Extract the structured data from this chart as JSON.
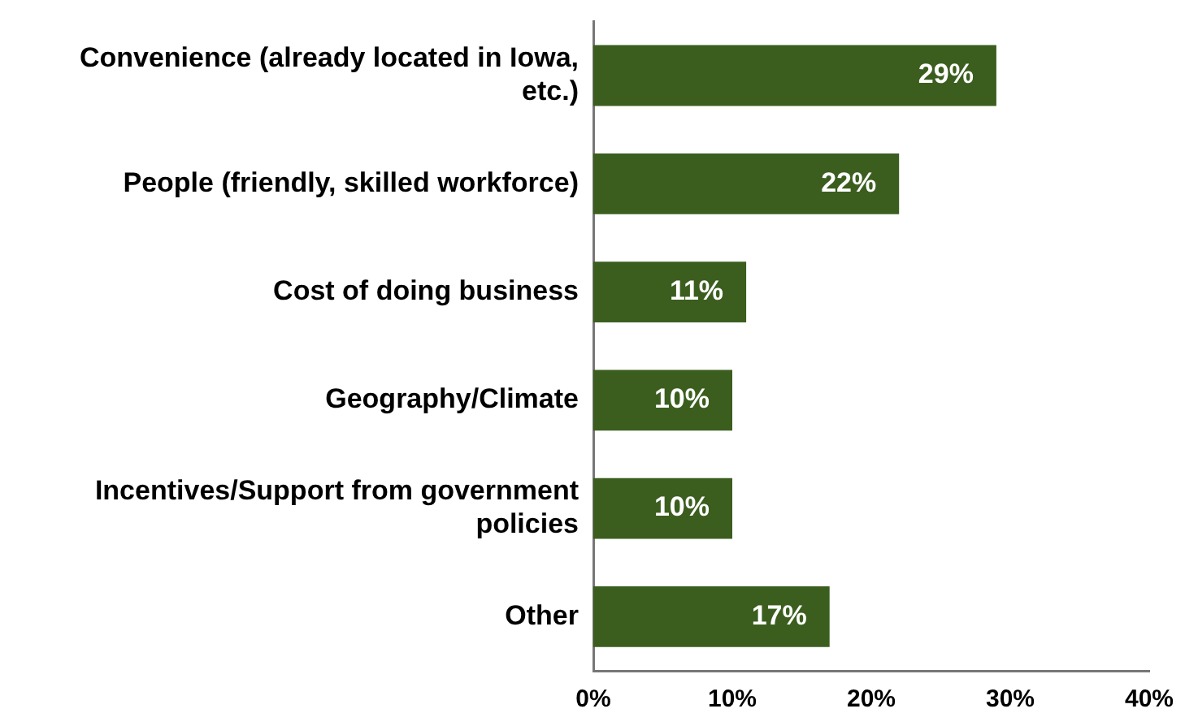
{
  "chart_data": {
    "type": "bar",
    "orientation": "horizontal",
    "categories": [
      "Convenience (already located in Iowa, etc.)",
      "People (friendly, skilled workforce)",
      "Cost of doing business",
      "Geography/Climate",
      "Incentives/Support from government policies",
      "Other"
    ],
    "values": [
      29,
      22,
      11,
      10,
      10,
      17
    ],
    "value_labels": [
      "29%",
      "22%",
      "11%",
      "10%",
      "10%",
      "17%"
    ],
    "color": "#3b5e1e",
    "xlim": [
      0,
      40
    ],
    "xticks": [
      {
        "value": 0,
        "label": "0%"
      },
      {
        "value": 10,
        "label": "10%"
      },
      {
        "value": 20,
        "label": "20%"
      },
      {
        "value": 30,
        "label": "30%"
      },
      {
        "value": 40,
        "label": "40%"
      }
    ],
    "grid": false,
    "legend": false
  }
}
